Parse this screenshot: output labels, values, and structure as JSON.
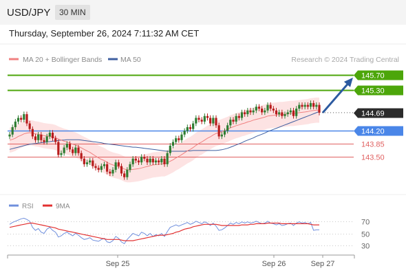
{
  "header": {
    "pair": "USD/JPY",
    "timeframe": "30 MIN"
  },
  "datetime": "Thursday, September 26, 2024 7:11:32 AM CET",
  "colors": {
    "bull": "#2e7d32",
    "bear": "#b71c1c",
    "ma20": "#f08080",
    "ma50": "#3f5fa0",
    "bands": "#fde3e3",
    "target": "#4ca60a",
    "pivot": "#4a86e8",
    "support": "#e06060",
    "rsi": "#6f8fdd",
    "rsi_ma": "#e23030",
    "arrow": "#2c5aa0"
  },
  "legend_main": [
    {
      "label": "MA 20 + Bollinger Bands",
      "color": "#f08080"
    },
    {
      "label": "MA 50",
      "color": "#3f5fa0"
    }
  ],
  "watermark": "Research © 2024 Trading Central",
  "legend_rsi": [
    {
      "label": "RSI",
      "color": "#6f8fdd"
    },
    {
      "label": "9MA",
      "color": "#e23030"
    }
  ],
  "chart_data": [
    {
      "type": "candlestick",
      "x_ticks": [
        "Sep 25",
        "Sep 26",
        "Sep 27"
      ],
      "ylim": [
        142.5,
        145.95
      ],
      "price_levels": [
        {
          "label": "145.70",
          "value": 145.7,
          "kind": "target"
        },
        {
          "label": "145.30",
          "value": 145.3,
          "kind": "target"
        },
        {
          "label": "144.69",
          "value": 144.69,
          "kind": "last"
        },
        {
          "label": "144.20",
          "value": 144.2,
          "kind": "pivot"
        },
        {
          "label": "143.85",
          "value": 143.85,
          "kind": "support"
        },
        {
          "label": "143.50",
          "value": 143.5,
          "kind": "support"
        }
      ],
      "close": [
        144.1,
        144.3,
        144.45,
        144.55,
        144.5,
        144.65,
        144.4,
        144.25,
        144.05,
        143.95,
        144.1,
        143.95,
        143.9,
        144.05,
        144.15,
        144.0,
        143.9,
        143.55,
        143.6,
        143.75,
        143.85,
        143.7,
        143.6,
        143.75,
        143.6,
        143.45,
        143.3,
        143.35,
        143.4,
        143.25,
        143.2,
        143.15,
        143.25,
        143.3,
        143.1,
        143.05,
        143.15,
        143.35,
        143.25,
        143.05,
        142.95,
        143.15,
        143.3,
        143.45,
        143.4,
        143.35,
        143.5,
        143.45,
        143.35,
        143.45,
        143.35,
        143.4,
        143.35,
        143.45,
        143.3,
        143.6,
        143.8,
        143.9,
        144.0,
        143.95,
        144.1,
        144.2,
        144.3,
        144.25,
        144.4,
        144.55,
        144.5,
        144.45,
        144.6,
        144.55,
        144.4,
        144.55,
        144.35,
        144.05,
        144.1,
        144.2,
        144.35,
        144.5,
        144.45,
        144.6,
        144.55,
        144.7,
        144.65,
        144.75,
        144.7,
        144.75,
        144.85,
        144.8,
        144.7,
        144.75,
        144.9,
        144.8,
        144.75,
        144.65,
        144.7,
        144.6,
        144.65,
        144.7,
        144.75,
        144.6,
        144.8,
        144.9,
        144.85,
        144.9,
        144.85,
        144.95,
        144.85,
        144.9,
        144.69
      ],
      "ma20": [
        143.95,
        143.97,
        144.0,
        144.05,
        144.08,
        144.12,
        144.14,
        144.15,
        144.14,
        144.12,
        144.11,
        144.09,
        144.07,
        144.06,
        144.05,
        144.04,
        144.02,
        143.98,
        143.95,
        143.92,
        143.9,
        143.87,
        143.84,
        143.82,
        143.78,
        143.74,
        143.7,
        143.66,
        143.62,
        143.57,
        143.52,
        143.47,
        143.43,
        143.4,
        143.35,
        143.31,
        143.28,
        143.26,
        143.24,
        143.21,
        143.17,
        143.15,
        143.15,
        143.16,
        143.17,
        143.18,
        143.2,
        143.22,
        143.24,
        143.26,
        143.28,
        143.29,
        143.3,
        143.31,
        143.31,
        143.34,
        143.38,
        143.42,
        143.47,
        143.51,
        143.56,
        143.61,
        143.66,
        143.7,
        143.75,
        143.81,
        143.86,
        143.9,
        143.95,
        144.0,
        144.04,
        144.09,
        144.13,
        144.15,
        144.18,
        144.21,
        144.24,
        144.28,
        144.31,
        144.34,
        144.36,
        144.39,
        144.41,
        144.44,
        144.46,
        144.49,
        144.51,
        144.53,
        144.55,
        144.57,
        144.6,
        144.61,
        144.62,
        144.63,
        144.64,
        144.64,
        144.65,
        144.66,
        144.67,
        144.67,
        144.68,
        144.69,
        144.7,
        144.71,
        144.72,
        144.74,
        144.75,
        144.76,
        144.76
      ],
      "ma50": [
        143.7,
        143.72,
        143.74,
        143.76,
        143.78,
        143.8,
        143.82,
        143.84,
        143.85,
        143.86,
        143.87,
        143.88,
        143.89,
        143.9,
        143.91,
        143.92,
        143.93,
        143.94,
        143.95,
        143.95,
        143.96,
        143.96,
        143.96,
        143.96,
        143.96,
        143.95,
        143.94,
        143.93,
        143.92,
        143.91,
        143.9,
        143.89,
        143.88,
        143.86,
        143.85,
        143.84,
        143.83,
        143.82,
        143.81,
        143.8,
        143.79,
        143.78,
        143.77,
        143.76,
        143.76,
        143.75,
        143.74,
        143.73,
        143.72,
        143.71,
        143.7,
        143.69,
        143.68,
        143.67,
        143.66,
        143.65,
        143.65,
        143.65,
        143.65,
        143.65,
        143.65,
        143.65,
        143.66,
        143.66,
        143.67,
        143.67,
        143.67,
        143.67,
        143.67,
        143.67,
        143.67,
        143.67,
        143.67,
        143.68,
        143.69,
        143.71,
        143.73,
        143.76,
        143.79,
        143.82,
        143.85,
        143.88,
        143.92,
        143.95,
        143.98,
        144.01,
        144.05,
        144.08,
        144.11,
        144.14,
        144.18,
        144.21,
        144.24,
        144.27,
        144.3,
        144.33,
        144.36,
        144.39,
        144.42,
        144.45,
        144.48,
        144.51,
        144.54,
        144.57,
        144.6,
        144.63,
        144.66,
        144.69,
        144.72
      ]
    },
    {
      "type": "line",
      "title": "RSI",
      "ylim": [
        20,
        80
      ],
      "y_ticks": [
        70,
        50,
        30
      ],
      "series": [
        {
          "name": "RSI",
          "values": [
            65,
            68,
            70,
            72,
            74,
            75,
            73,
            70,
            60,
            55,
            58,
            52,
            50,
            57,
            60,
            55,
            52,
            44,
            46,
            50,
            52,
            49,
            46,
            50,
            47,
            43,
            40,
            41,
            43,
            39,
            38,
            37,
            40,
            42,
            36,
            35,
            38,
            45,
            42,
            36,
            33,
            40,
            45,
            50,
            48,
            46,
            52,
            50,
            46,
            50,
            45,
            48,
            46,
            50,
            45,
            53,
            60,
            62,
            64,
            62,
            64,
            66,
            68,
            65,
            67,
            70,
            68,
            66,
            69,
            67,
            63,
            67,
            62,
            55,
            56,
            59,
            63,
            67,
            65,
            68,
            66,
            69,
            67,
            69,
            67,
            68,
            70,
            68,
            66,
            67,
            70,
            67,
            66,
            64,
            66,
            63,
            64,
            66,
            67,
            63,
            67,
            69,
            67,
            68,
            66,
            68,
            55,
            56,
            56
          ]
        },
        {
          "name": "9MA",
          "values": [
            60,
            61,
            62,
            63,
            64,
            65,
            66,
            67,
            67,
            66,
            65,
            64,
            63,
            62,
            61,
            60,
            59,
            57,
            56,
            55,
            54,
            53,
            52,
            51,
            50,
            49,
            48,
            47,
            46,
            45,
            44,
            43,
            42,
            41,
            40,
            40,
            40,
            40,
            40,
            39,
            38,
            38,
            38,
            38,
            39,
            40,
            41,
            42,
            43,
            44,
            45,
            46,
            47,
            47,
            47,
            48,
            49,
            50,
            52,
            53,
            55,
            57,
            58,
            59,
            61,
            62,
            63,
            64,
            65,
            65,
            65,
            65,
            65,
            64,
            63,
            63,
            63,
            63,
            63,
            63,
            63,
            64,
            64,
            64,
            65,
            65,
            66,
            66,
            66,
            66,
            67,
            67,
            67,
            67,
            67,
            66,
            66,
            66,
            66,
            66,
            66,
            66,
            66,
            66,
            66,
            65,
            64,
            64,
            64
          ]
        }
      ]
    }
  ]
}
